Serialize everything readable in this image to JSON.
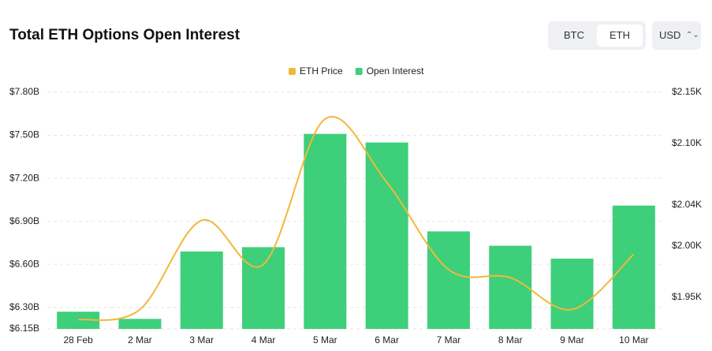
{
  "ui": {
    "coins": [
      "BTC",
      "ETH"
    ],
    "currency": "USD"
  },
  "chart_data": {
    "type": "bar",
    "title": "Total ETH Options Open Interest",
    "categories": [
      "28 Feb",
      "2 Mar",
      "3 Mar",
      "4 Mar",
      "5 Mar",
      "6 Mar",
      "7 Mar",
      "8 Mar",
      "9 Mar",
      "10 Mar"
    ],
    "series": [
      {
        "name": "ETH Price",
        "type": "line",
        "axis": "y2",
        "color": "#f0b93a",
        "values": [
          1928,
          1938,
          2025,
          1982,
          2124,
          2062,
          1977,
          1969,
          1938,
          1992
        ]
      },
      {
        "name": "Open Interest",
        "type": "bar",
        "color": "#3ecf7a",
        "values": [
          6.27,
          6.22,
          6.69,
          6.72,
          7.51,
          7.45,
          6.83,
          6.73,
          6.64,
          7.01
        ]
      }
    ],
    "ylim": [
      6.15,
      7.8
    ],
    "yticks": [
      {
        "value": 6.15,
        "label": "$6.15B"
      },
      {
        "value": 6.3,
        "label": "$6.30B"
      },
      {
        "value": 6.6,
        "label": "$6.60B"
      },
      {
        "value": 6.9,
        "label": "$6.90B"
      },
      {
        "value": 7.2,
        "label": "$7.20B"
      },
      {
        "value": 7.5,
        "label": "$7.50B"
      },
      {
        "value": 7.8,
        "label": "$7.80B"
      }
    ],
    "y2lim": [
      1919,
      2150
    ],
    "y2ticks": [
      {
        "value": 1950,
        "label": "$1.95K"
      },
      {
        "value": 2000,
        "label": "$2.00K"
      },
      {
        "value": 2040,
        "label": "$2.04K"
      },
      {
        "value": 2100,
        "label": "$2.10K"
      },
      {
        "value": 2150,
        "label": "$2.15K"
      }
    ],
    "grid": true,
    "legend": "top"
  }
}
